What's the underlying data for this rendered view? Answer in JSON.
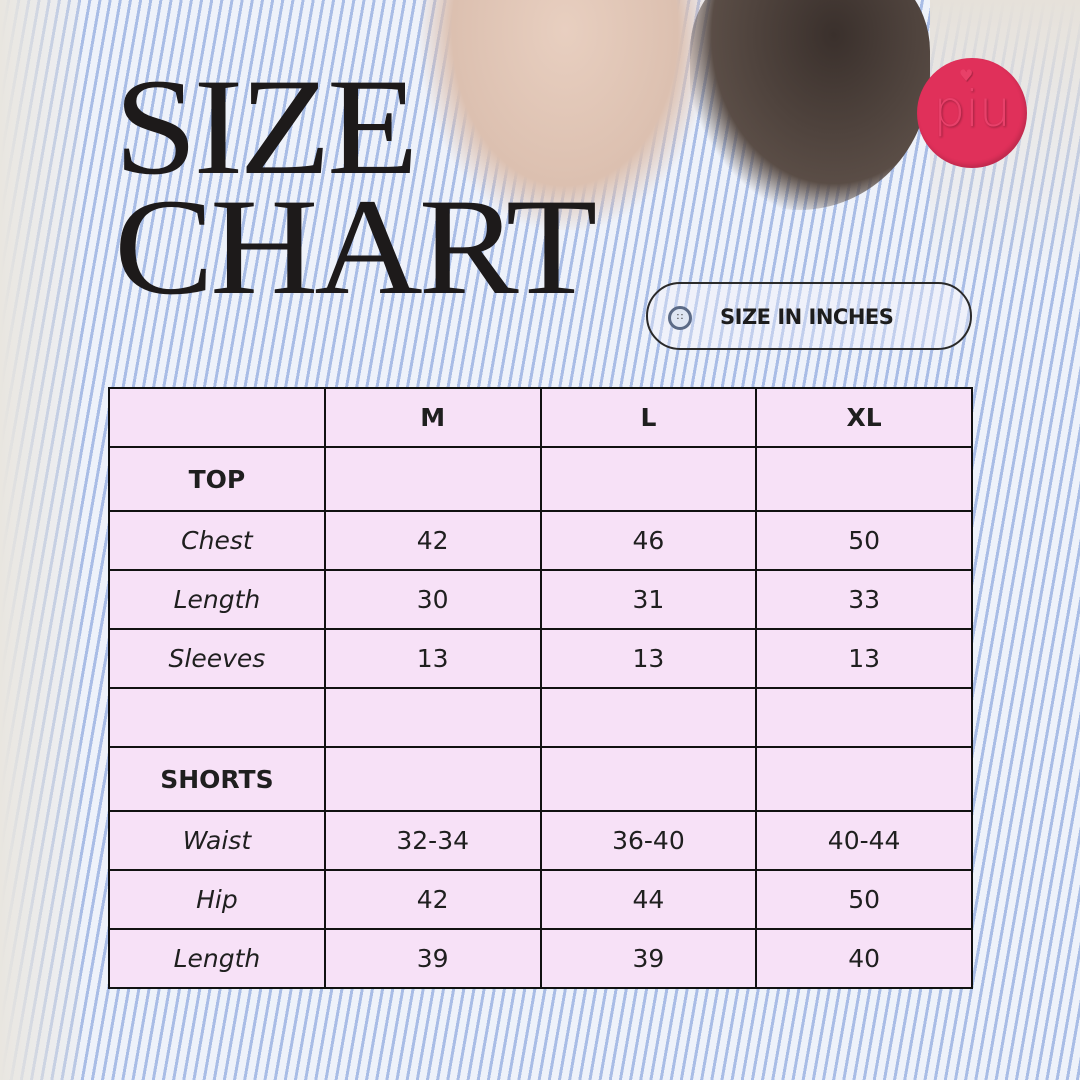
{
  "title": {
    "line1": "SIZE",
    "line2": "CHART"
  },
  "logo": {
    "text": "piu",
    "color": "#e0305a"
  },
  "badge": {
    "label": "SIZE IN INCHES",
    "icon": "button-icon"
  },
  "table": {
    "headers": [
      "",
      "M",
      "L",
      "XL"
    ],
    "rows": [
      {
        "label": "TOP",
        "type": "section",
        "values": [
          "",
          "",
          ""
        ]
      },
      {
        "label": "Chest",
        "values": [
          "42",
          "46",
          "50"
        ]
      },
      {
        "label": "Length",
        "values": [
          "30",
          "31",
          "33"
        ]
      },
      {
        "label": "Sleeves",
        "values": [
          "13",
          "13",
          "13"
        ]
      },
      {
        "label": "",
        "type": "blank",
        "values": [
          "",
          "",
          ""
        ]
      },
      {
        "label": "SHORTS",
        "type": "section",
        "values": [
          "",
          "",
          ""
        ]
      },
      {
        "label": "Waist",
        "values": [
          "32-34",
          "36-40",
          "40-44"
        ]
      },
      {
        "label": "Hip",
        "values": [
          "42",
          "44",
          "50"
        ]
      },
      {
        "label": "Length",
        "values": [
          "39",
          "39",
          "40"
        ]
      }
    ]
  },
  "colors": {
    "table_bg": "#f7e1f7",
    "stripe": "#a9bde6"
  }
}
